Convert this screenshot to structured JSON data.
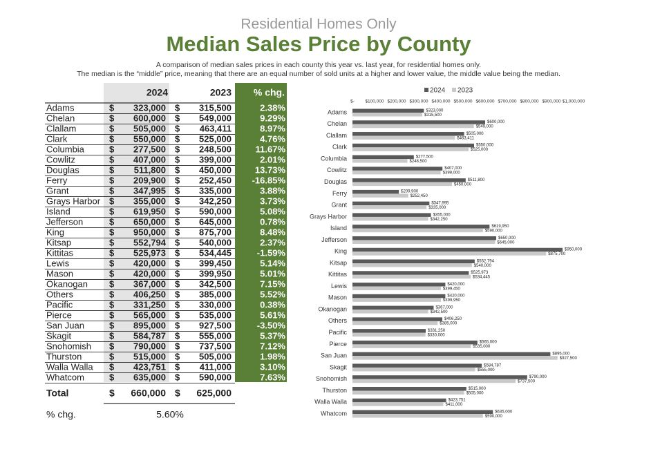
{
  "header": {
    "subtitle": "Residential Homes Only",
    "title": "Median Sales Price by County",
    "description": [
      "A comparison of median sales prices in each county this year vs. last year, for residential homes only.",
      "The median is the “middle” price, meaning that there are an equal number of sold units at a higher and lower value, the middle value being the median."
    ]
  },
  "table": {
    "columns": [
      "2024",
      "2023",
      "% chg."
    ],
    "currency_symbol": "$",
    "rows": [
      [
        "Adams",
        "323,000",
        "315,500",
        "2.38%"
      ],
      [
        "Chelan",
        "600,000",
        "549,000",
        "9.29%"
      ],
      [
        "Clallam",
        "505,000",
        "463,411",
        "8.97%"
      ],
      [
        "Clark",
        "550,000",
        "525,000",
        "4.76%"
      ],
      [
        "Columbia",
        "277,500",
        "248,500",
        "11.67%"
      ],
      [
        "Cowlitz",
        "407,000",
        "399,000",
        "2.01%"
      ],
      [
        "Douglas",
        "511,800",
        "450,000",
        "13.73%"
      ],
      [
        "Ferry",
        "209,900",
        "252,450",
        "-16.85%"
      ],
      [
        "Grant",
        "347,995",
        "335,000",
        "3.88%"
      ],
      [
        "Grays Harbor",
        "355,000",
        "342,250",
        "3.73%"
      ],
      [
        "Island",
        "619,950",
        "590,000",
        "5.08%"
      ],
      [
        "Jefferson",
        "650,000",
        "645,000",
        "0.78%"
      ],
      [
        "King",
        "950,000",
        "875,700",
        "8.48%"
      ],
      [
        "Kitsap",
        "552,794",
        "540,000",
        "2.37%"
      ],
      [
        "Kittitas",
        "525,973",
        "534,445",
        "-1.59%"
      ],
      [
        "Lewis",
        "420,000",
        "399,450",
        "5.14%"
      ],
      [
        "Mason",
        "420,000",
        "399,950",
        "5.01%"
      ],
      [
        "Okanogan",
        "367,000",
        "342,500",
        "7.15%"
      ],
      [
        "Others",
        "406,250",
        "385,000",
        "5.52%"
      ],
      [
        "Pacific",
        "331,250",
        "330,000",
        "0.38%"
      ],
      [
        "Pierce",
        "565,000",
        "535,000",
        "5.61%"
      ],
      [
        "San Juan",
        "895,000",
        "927,500",
        "-3.50%"
      ],
      [
        "Skagit",
        "584,787",
        "555,000",
        "5.37%"
      ],
      [
        "Snohomish",
        "790,000",
        "737,500",
        "7.12%"
      ],
      [
        "Thurston",
        "515,000",
        "505,000",
        "1.98%"
      ],
      [
        "Walla Walla",
        "423,751",
        "411,000",
        "3.10%"
      ],
      [
        "Whatcom",
        "635,000",
        "590,000",
        "7.63%"
      ]
    ],
    "total": [
      "Total",
      "660,000",
      "625,000"
    ],
    "total_change": [
      "% chg.",
      "5.60%"
    ]
  },
  "chart_data": {
    "type": "hbar",
    "categories": [
      "Adams",
      "Chelan",
      "Clallam",
      "Clark",
      "Columbia",
      "Cowlitz",
      "Douglas",
      "Ferry",
      "Grant",
      "Grays Harbor",
      "Island",
      "Jefferson",
      "King",
      "Kitsap",
      "Kittitas",
      "Lewis",
      "Mason",
      "Okanogan",
      "Others",
      "Pacific",
      "Pierce",
      "San Juan",
      "Skagit",
      "Snohomish",
      "Thurston",
      "Walla Walla",
      "Whatcom"
    ],
    "series": [
      {
        "name": "2024",
        "color": "#595959",
        "values": [
          323000,
          600000,
          505000,
          550000,
          277500,
          407000,
          511800,
          209900,
          347995,
          355000,
          619950,
          650000,
          950000,
          552794,
          525973,
          420000,
          420000,
          367000,
          406250,
          331250,
          565000,
          895000,
          584787,
          790000,
          515000,
          423751,
          635000
        ],
        "value_labels": [
          "$323,000",
          "$600,000",
          "$505,000",
          "$550,000",
          "$277,500",
          "$407,000",
          "$511,800",
          "$209,900",
          "$347,995",
          "$355,000",
          "$619,950",
          "$650,000",
          "$950,000",
          "$552,794",
          "$525,973",
          "$420,000",
          "$420,000",
          "$367,000",
          "$406,250",
          "$331,250",
          "$565,000",
          "$895,000",
          "$584,787",
          "$790,000",
          "$515,000",
          "$423,751",
          "$635,000"
        ]
      },
      {
        "name": "2023",
        "color": "#c9c9c9",
        "values": [
          315500,
          549000,
          463411,
          525000,
          248500,
          399000,
          450000,
          252450,
          335000,
          342250,
          590000,
          645000,
          875700,
          540000,
          534445,
          399450,
          399950,
          342500,
          385000,
          330000,
          535000,
          927500,
          555000,
          737500,
          505000,
          411000,
          590000
        ],
        "value_labels": [
          "$315,500",
          "$549,000",
          "$463,411",
          "$525,000",
          "$248,500",
          "$399,000",
          "$450,000",
          "$252,450",
          "$335,000",
          "$342,250",
          "$590,000",
          "$645,000",
          "$875,700",
          "$540,000",
          "$534,445",
          "$399,450",
          "$399,950",
          "$342,500",
          "$385,000",
          "$330,000",
          "$535,000",
          "$927,500",
          "$555,000",
          "$737,500",
          "$505,000",
          "$411,000",
          "$590,000"
        ]
      }
    ],
    "xlim": [
      0,
      1000000
    ],
    "xticks": [
      {
        "value": 0,
        "label": "$-"
      },
      {
        "value": 100000,
        "label": "$100,000"
      },
      {
        "value": 200000,
        "label": "$200,000"
      },
      {
        "value": 300000,
        "label": "$300,000"
      },
      {
        "value": 400000,
        "label": "$400,000"
      },
      {
        "value": 500000,
        "label": "$500,000"
      },
      {
        "value": 600000,
        "label": "$600,000"
      },
      {
        "value": 700000,
        "label": "$700,000"
      },
      {
        "value": 800000,
        "label": "$800,000"
      },
      {
        "value": 900000,
        "label": "$900,000"
      },
      {
        "value": 1000000,
        "label": "$1,000,000"
      }
    ],
    "grid": false,
    "legend": "top"
  }
}
